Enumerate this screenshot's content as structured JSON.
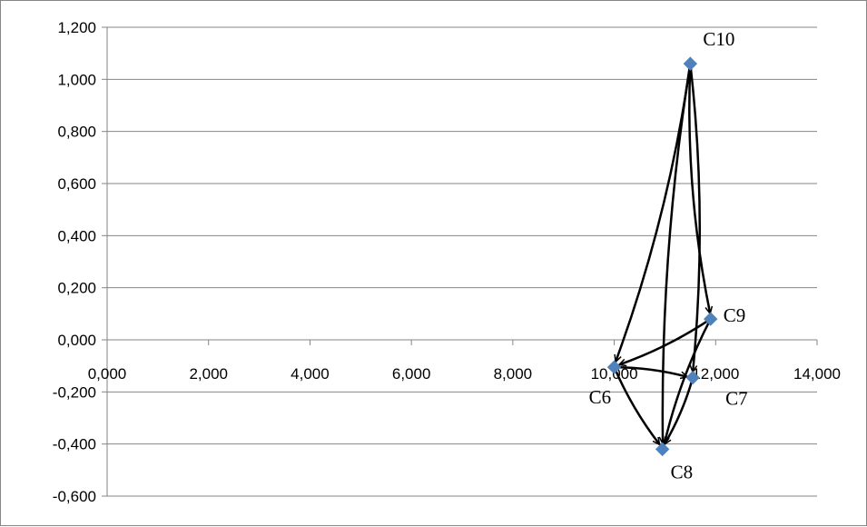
{
  "chart_data": {
    "type": "scatter",
    "title": "",
    "xlabel": "",
    "ylabel": "",
    "xlim": [
      0,
      14
    ],
    "ylim": [
      -0.6,
      1.2
    ],
    "x_ticks": [
      0,
      2,
      4,
      6,
      8,
      10,
      12,
      14
    ],
    "x_tick_labels": [
      "0,000",
      "2,000",
      "4,000",
      "6,000",
      "8,000",
      "10,000",
      "12,000",
      "14,000"
    ],
    "y_ticks": [
      -0.6,
      -0.4,
      -0.2,
      0,
      0.2,
      0.4,
      0.6,
      0.8,
      1.0,
      1.2
    ],
    "y_tick_labels": [
      "-0,600",
      "-0,400",
      "-0,200",
      "0,000",
      "0,200",
      "0,400",
      "0,600",
      "0,800",
      "1,000",
      "1,200"
    ],
    "grid": "horizontal",
    "marker_color": "#4F81BD",
    "points": [
      {
        "label": "C6",
        "x": 10.0,
        "y": -0.105,
        "label_pos": "below-left"
      },
      {
        "label": "C7",
        "x": 11.55,
        "y": -0.145,
        "label_pos": "below-right"
      },
      {
        "label": "C8",
        "x": 10.95,
        "y": -0.42,
        "label_pos": "below-right"
      },
      {
        "label": "C9",
        "x": 11.9,
        "y": 0.08,
        "label_pos": "right"
      },
      {
        "label": "C10",
        "x": 11.5,
        "y": 1.06,
        "label_pos": "above-right"
      }
    ],
    "arrows": [
      {
        "from": "C10",
        "to": "C6"
      },
      {
        "from": "C10",
        "to": "C8"
      },
      {
        "from": "C10",
        "to": "C7"
      },
      {
        "from": "C10",
        "to": "C9"
      },
      {
        "from": "C9",
        "to": "C6"
      },
      {
        "from": "C9",
        "to": "C8"
      },
      {
        "from": "C6",
        "to": "C7"
      },
      {
        "from": "C6",
        "to": "C8"
      },
      {
        "from": "C7",
        "to": "C8"
      }
    ]
  }
}
